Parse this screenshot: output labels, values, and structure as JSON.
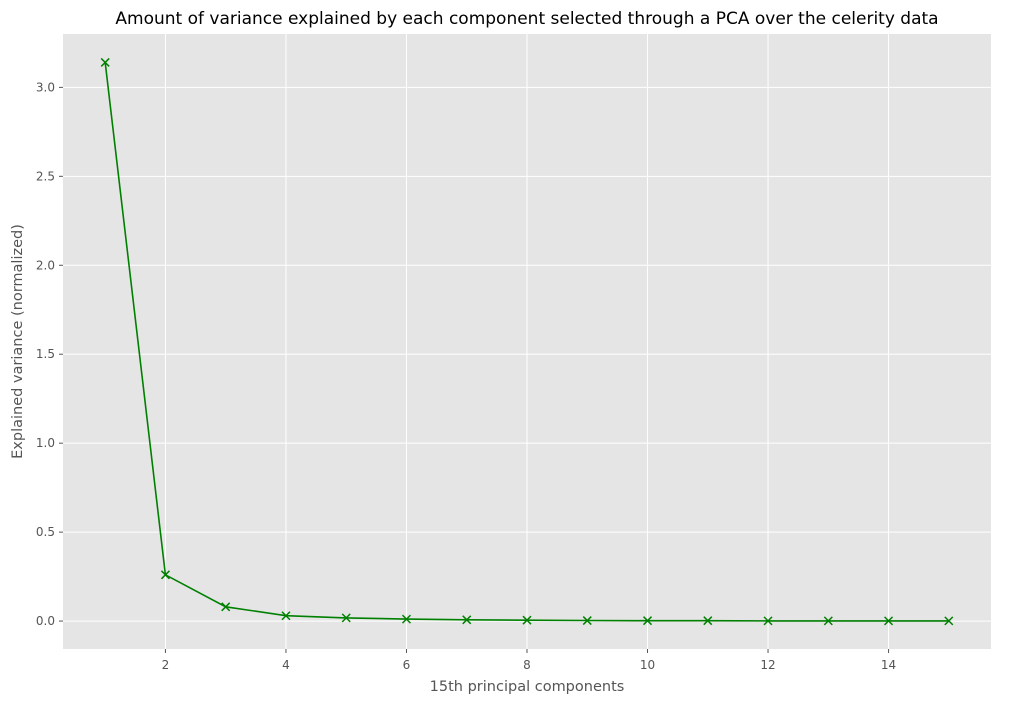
{
  "chart_data": {
    "type": "line",
    "title": "Amount of variance explained by each component selected through a PCA over the celerity data",
    "xlabel": "15th principal components",
    "ylabel": "Explained variance (normalized)",
    "x": [
      1,
      2,
      3,
      4,
      5,
      6,
      7,
      8,
      9,
      10,
      11,
      12,
      13,
      14,
      15
    ],
    "series": [
      {
        "values": [
          3.14,
          0.26,
          0.08,
          0.03,
          0.018,
          0.011,
          0.007,
          0.005,
          0.003,
          0.002,
          0.002,
          0.001,
          0.001,
          0.001,
          0.001
        ],
        "color": "#008000",
        "marker": "x"
      }
    ],
    "xlim": [
      0.3,
      15.7
    ],
    "ylim": [
      -0.157,
      3.3
    ],
    "xticks": [
      2,
      4,
      6,
      8,
      10,
      12,
      14
    ],
    "xtick_labels": [
      "2",
      "4",
      "6",
      "8",
      "10",
      "12",
      "14"
    ],
    "yticks": [
      0.0,
      0.5,
      1.0,
      1.5,
      2.0,
      2.5,
      3.0
    ],
    "ytick_labels": [
      "0.0",
      "0.5",
      "1.0",
      "1.5",
      "2.0",
      "2.5",
      "3.0"
    ],
    "grid": true,
    "style": "ggplot",
    "background_color": "#e5e5e5"
  }
}
